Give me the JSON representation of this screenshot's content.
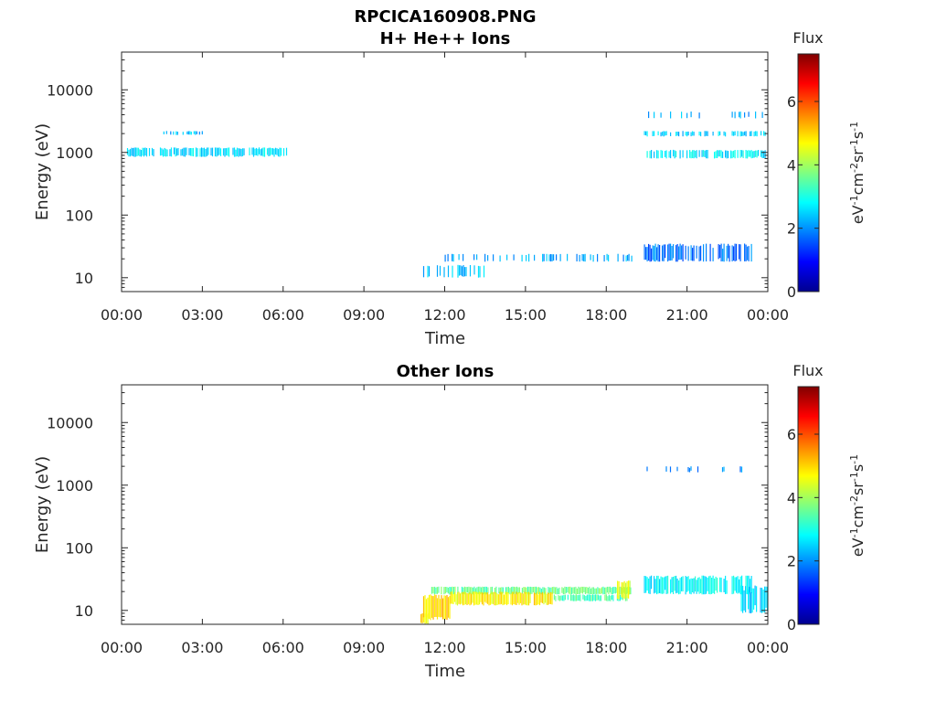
{
  "figure": {
    "title": "RPCICA160908.PNG"
  },
  "colors": {
    "axis": "#262626",
    "colormap": [
      "#00008f",
      "#0000ff",
      "#0080ff",
      "#00ffff",
      "#80ff80",
      "#ffff00",
      "#ff8000",
      "#ff0000",
      "#800000"
    ]
  },
  "chart_data": [
    {
      "type": "heatmap",
      "title": "H+ He++ Ions",
      "xlabel": "Time",
      "ylabel": "Energy (eV)",
      "x_ticks": [
        "00:00",
        "03:00",
        "06:00",
        "09:00",
        "12:00",
        "15:00",
        "18:00",
        "21:00",
        "00:00"
      ],
      "xlim_hours": [
        0,
        24
      ],
      "y_scale": "log",
      "y_ticks": [
        {
          "value": 10,
          "label": "10"
        },
        {
          "value": 100,
          "label": "100"
        },
        {
          "value": 1000,
          "label": "1000"
        },
        {
          "value": 10000,
          "label": "10000"
        }
      ],
      "ylim": [
        6,
        40000
      ],
      "grid": false,
      "colorbar": {
        "title": "Flux",
        "label": "eV-1cm-2sr-1s-1",
        "range": [
          0,
          7.5
        ],
        "ticks": [
          0,
          2,
          4,
          6
        ]
      },
      "cells": [
        {
          "t0": 0.2,
          "t1": 6.2,
          "e0": 850,
          "e1": 1200,
          "flux": 2.6,
          "density": 0.75
        },
        {
          "t0": 1.5,
          "t1": 3.0,
          "e0": 1900,
          "e1": 2200,
          "flux": 2.3,
          "density": 0.4
        },
        {
          "t0": 11.2,
          "t1": 13.5,
          "e0": 10,
          "e1": 16,
          "flux": 2.4,
          "density": 0.5
        },
        {
          "t0": 12.0,
          "t1": 19.0,
          "e0": 18,
          "e1": 24,
          "flux": 2.2,
          "density": 0.3
        },
        {
          "t0": 19.4,
          "t1": 23.9,
          "e0": 800,
          "e1": 1100,
          "flux": 2.7,
          "density": 0.7
        },
        {
          "t0": 19.4,
          "t1": 23.9,
          "e0": 1800,
          "e1": 2200,
          "flux": 2.5,
          "density": 0.45
        },
        {
          "t0": 19.4,
          "t1": 23.5,
          "e0": 18,
          "e1": 35,
          "flux": 1.8,
          "density": 0.7
        },
        {
          "t0": 19.4,
          "t1": 23.9,
          "e0": 3500,
          "e1": 4500,
          "flux": 2.2,
          "density": 0.12
        }
      ]
    },
    {
      "type": "heatmap",
      "title": "Other Ions",
      "xlabel": "Time",
      "ylabel": "Energy (eV)",
      "x_ticks": [
        "00:00",
        "03:00",
        "06:00",
        "09:00",
        "12:00",
        "15:00",
        "18:00",
        "21:00",
        "00:00"
      ],
      "xlim_hours": [
        0,
        24
      ],
      "y_scale": "log",
      "y_ticks": [
        {
          "value": 10,
          "label": "10"
        },
        {
          "value": 100,
          "label": "100"
        },
        {
          "value": 1000,
          "label": "1000"
        },
        {
          "value": 10000,
          "label": "10000"
        }
      ],
      "ylim": [
        6,
        40000
      ],
      "grid": false,
      "colorbar": {
        "title": "Flux",
        "label": "eV-1cm-2sr-1s-1",
        "range": [
          0,
          7.5
        ],
        "ticks": [
          0,
          2,
          4,
          6
        ]
      },
      "cells": [
        {
          "t0": 11.1,
          "t1": 11.4,
          "e0": 6,
          "e1": 9,
          "flux": 4.8,
          "density": 1.0
        },
        {
          "t0": 11.2,
          "t1": 12.2,
          "e0": 7,
          "e1": 18,
          "flux": 5.0,
          "density": 1.0
        },
        {
          "t0": 11.5,
          "t1": 18.9,
          "e0": 18,
          "e1": 24,
          "flux": 3.6,
          "density": 0.9
        },
        {
          "t0": 12.2,
          "t1": 16.0,
          "e0": 12,
          "e1": 20,
          "flux": 4.8,
          "density": 0.95
        },
        {
          "t0": 16.0,
          "t1": 18.8,
          "e0": 14,
          "e1": 18,
          "flux": 3.4,
          "density": 0.8
        },
        {
          "t0": 18.4,
          "t1": 18.9,
          "e0": 15,
          "e1": 30,
          "flux": 4.4,
          "density": 0.95
        },
        {
          "t0": 19.4,
          "t1": 23.5,
          "e0": 18,
          "e1": 36,
          "flux": 2.8,
          "density": 0.85
        },
        {
          "t0": 23.0,
          "t1": 24.0,
          "e0": 9,
          "e1": 25,
          "flux": 2.5,
          "density": 0.8
        },
        {
          "t0": 19.5,
          "t1": 23.9,
          "e0": 1600,
          "e1": 2000,
          "flux": 2.0,
          "density": 0.12
        }
      ]
    }
  ]
}
